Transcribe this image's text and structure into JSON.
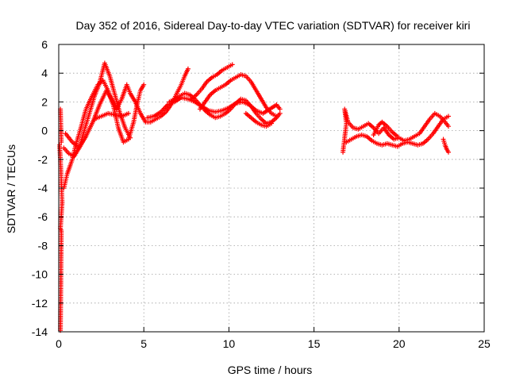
{
  "chart_data": {
    "type": "scatter",
    "title": "Day 352 of 2016, Sidereal Day-to-day VTEC variation (SDTVAR) for receiver kiri",
    "xlabel": "GPS time / hours",
    "ylabel": "SDTVAR / TECUs",
    "xlim": [
      0,
      25
    ],
    "ylim": [
      -14,
      6
    ],
    "x_ticks": [
      "0",
      "5",
      "10",
      "15",
      "20",
      "25"
    ],
    "y_ticks": [
      "6",
      "4",
      "2",
      "0",
      "-2",
      "-4",
      "-6",
      "-8",
      "-10",
      "-12",
      "-14"
    ],
    "grid": true,
    "marker": "plus",
    "color": "#ff0000",
    "tracks": [
      [
        [
          0.05,
          -1.0
        ],
        [
          0.1,
          -2.0
        ],
        [
          0.15,
          -3.5
        ],
        [
          0.2,
          -5.0
        ],
        [
          0.1,
          -6.8
        ],
        [
          0.15,
          -7.0
        ],
        [
          0.1,
          -13.9
        ]
      ],
      [
        [
          0.1,
          1.5
        ],
        [
          0.12,
          0.5
        ],
        [
          0.15,
          -0.8
        ]
      ],
      [
        [
          0.3,
          -4.0
        ],
        [
          0.5,
          -3.0
        ],
        [
          0.8,
          -2.0
        ],
        [
          1.0,
          -1.0
        ],
        [
          1.3,
          0.2
        ],
        [
          1.6,
          1.5
        ],
        [
          2.0,
          2.5
        ],
        [
          2.3,
          3.2
        ],
        [
          2.6,
          3.5
        ],
        [
          2.9,
          2.8
        ],
        [
          3.2,
          1.8
        ],
        [
          3.5,
          0.2
        ],
        [
          3.8,
          -0.8
        ],
        [
          4.1,
          -0.6
        ],
        [
          4.4,
          0.6
        ],
        [
          4.6,
          1.8
        ],
        [
          4.8,
          2.8
        ],
        [
          5.0,
          3.2
        ]
      ],
      [
        [
          0.3,
          -1.2
        ],
        [
          0.6,
          -1.6
        ],
        [
          0.9,
          -1.8
        ],
        [
          1.2,
          -1.2
        ],
        [
          1.5,
          0.0
        ],
        [
          1.8,
          1.2
        ],
        [
          2.1,
          2.4
        ],
        [
          2.4,
          3.3
        ],
        [
          2.7,
          4.7
        ],
        [
          3.0,
          3.8
        ],
        [
          3.3,
          2.5
        ],
        [
          3.6,
          1.2
        ],
        [
          3.9,
          0.2
        ],
        [
          4.2,
          -0.5
        ]
      ],
      [
        [
          0.4,
          -0.2
        ],
        [
          0.8,
          -0.8
        ],
        [
          1.2,
          -1.2
        ],
        [
          1.6,
          -0.4
        ],
        [
          2.0,
          0.6
        ],
        [
          2.4,
          1.8
        ],
        [
          2.8,
          2.8
        ],
        [
          3.1,
          2.2
        ],
        [
          3.4,
          1.5
        ],
        [
          3.7,
          2.2
        ],
        [
          4.0,
          3.2
        ],
        [
          4.2,
          2.6
        ],
        [
          4.5,
          2.0
        ],
        [
          4.8,
          1.2
        ],
        [
          5.1,
          0.6
        ],
        [
          5.4,
          0.6
        ],
        [
          5.7,
          0.8
        ],
        [
          6.0,
          1.0
        ],
        [
          6.3,
          1.3
        ],
        [
          6.6,
          1.8
        ],
        [
          6.9,
          2.5
        ],
        [
          7.2,
          3.2
        ],
        [
          7.4,
          3.8
        ],
        [
          7.6,
          4.3
        ]
      ],
      [
        [
          2.1,
          0.8
        ],
        [
          2.5,
          1.0
        ],
        [
          2.9,
          1.2
        ],
        [
          3.3,
          1.1
        ],
        [
          3.7,
          1.0
        ],
        [
          4.1,
          1.2
        ]
      ],
      [
        [
          5.2,
          0.9
        ],
        [
          5.6,
          1.0
        ],
        [
          6.0,
          1.3
        ],
        [
          6.4,
          1.8
        ],
        [
          6.8,
          2.0
        ],
        [
          7.2,
          2.3
        ],
        [
          7.6,
          2.2
        ],
        [
          8.0,
          2.0
        ],
        [
          8.4,
          1.7
        ],
        [
          8.8,
          1.4
        ],
        [
          9.2,
          1.3
        ],
        [
          9.6,
          1.4
        ],
        [
          10.0,
          1.6
        ],
        [
          10.4,
          1.9
        ],
        [
          10.8,
          2.0
        ],
        [
          11.2,
          1.8
        ],
        [
          11.6,
          1.4
        ],
        [
          12.0,
          1.2
        ],
        [
          12.4,
          1.5
        ],
        [
          12.8,
          1.8
        ],
        [
          13.0,
          1.5
        ]
      ],
      [
        [
          6.5,
          2.0
        ],
        [
          6.8,
          2.2
        ],
        [
          7.1,
          2.4
        ],
        [
          7.4,
          2.6
        ],
        [
          7.7,
          2.5
        ],
        [
          8.0,
          2.2
        ],
        [
          8.3,
          1.8
        ],
        [
          8.6,
          1.4
        ],
        [
          8.9,
          1.1
        ],
        [
          9.2,
          0.9
        ],
        [
          9.5,
          1.0
        ],
        [
          9.8,
          1.2
        ],
        [
          10.1,
          1.5
        ],
        [
          10.4,
          1.9
        ],
        [
          10.7,
          2.2
        ],
        [
          11.0,
          2.1
        ],
        [
          11.3,
          1.7
        ],
        [
          11.6,
          1.2
        ],
        [
          11.9,
          0.8
        ],
        [
          12.2,
          0.5
        ],
        [
          12.5,
          0.6
        ],
        [
          12.8,
          0.9
        ],
        [
          13.0,
          1.2
        ]
      ],
      [
        [
          7.8,
          2.2
        ],
        [
          8.1,
          2.5
        ],
        [
          8.4,
          2.9
        ],
        [
          8.7,
          3.4
        ],
        [
          9.0,
          3.7
        ],
        [
          9.3,
          3.9
        ],
        [
          9.6,
          4.2
        ],
        [
          9.9,
          4.4
        ],
        [
          10.2,
          4.6
        ]
      ],
      [
        [
          8.3,
          1.5
        ],
        [
          8.6,
          2.0
        ],
        [
          8.9,
          2.5
        ],
        [
          9.2,
          2.8
        ],
        [
          9.5,
          3.0
        ],
        [
          9.8,
          3.2
        ],
        [
          10.1,
          3.5
        ],
        [
          10.4,
          3.7
        ],
        [
          10.7,
          3.9
        ],
        [
          11.0,
          3.8
        ],
        [
          11.3,
          3.4
        ],
        [
          11.6,
          2.8
        ],
        [
          11.9,
          2.2
        ],
        [
          12.2,
          1.6
        ],
        [
          12.5,
          1.2
        ],
        [
          12.8,
          1.0
        ]
      ],
      [
        [
          11.0,
          1.2
        ],
        [
          11.3,
          0.9
        ],
        [
          11.6,
          0.6
        ],
        [
          11.9,
          0.4
        ],
        [
          12.2,
          0.3
        ],
        [
          12.5,
          0.5
        ]
      ],
      [
        [
          16.7,
          -1.5
        ],
        [
          16.8,
          -0.5
        ],
        [
          16.9,
          0.5
        ],
        [
          16.8,
          1.5
        ],
        [
          17.0,
          0.6
        ],
        [
          17.3,
          0.2
        ],
        [
          17.6,
          0.1
        ],
        [
          17.9,
          0.3
        ],
        [
          18.2,
          0.5
        ],
        [
          18.5,
          0.2
        ],
        [
          18.8,
          -0.2
        ],
        [
          19.1,
          0.2
        ],
        [
          19.4,
          -0.3
        ],
        [
          19.7,
          -0.6
        ],
        [
          20.0,
          -0.5
        ],
        [
          20.3,
          -0.7
        ],
        [
          20.6,
          -0.6
        ],
        [
          20.9,
          -0.4
        ],
        [
          21.2,
          -0.2
        ],
        [
          21.5,
          0.3
        ],
        [
          21.8,
          0.8
        ],
        [
          22.1,
          1.2
        ],
        [
          22.4,
          1.0
        ],
        [
          22.7,
          0.6
        ],
        [
          22.9,
          0.3
        ]
      ],
      [
        [
          16.9,
          -0.8
        ],
        [
          17.2,
          -0.6
        ],
        [
          17.5,
          -0.4
        ],
        [
          17.8,
          -0.3
        ],
        [
          18.1,
          -0.4
        ],
        [
          18.4,
          -0.7
        ],
        [
          18.7,
          -0.9
        ],
        [
          19.0,
          -1.0
        ],
        [
          19.3,
          -0.9
        ],
        [
          19.6,
          -1.0
        ],
        [
          19.9,
          -1.1
        ],
        [
          20.2,
          -0.9
        ],
        [
          20.5,
          -0.8
        ],
        [
          20.8,
          -0.9
        ],
        [
          21.1,
          -1.0
        ],
        [
          21.4,
          -0.9
        ],
        [
          21.7,
          -0.6
        ],
        [
          22.0,
          -0.2
        ],
        [
          22.3,
          0.3
        ],
        [
          22.6,
          0.8
        ],
        [
          22.9,
          1.0
        ]
      ],
      [
        [
          18.5,
          -0.3
        ],
        [
          18.8,
          0.4
        ],
        [
          19.0,
          0.6
        ],
        [
          19.3,
          0.3
        ],
        [
          19.6,
          -0.1
        ],
        [
          19.9,
          -0.4
        ]
      ],
      [
        [
          22.6,
          -0.6
        ],
        [
          22.7,
          -1.0
        ],
        [
          22.8,
          -1.3
        ],
        [
          22.9,
          -1.5
        ]
      ]
    ]
  }
}
